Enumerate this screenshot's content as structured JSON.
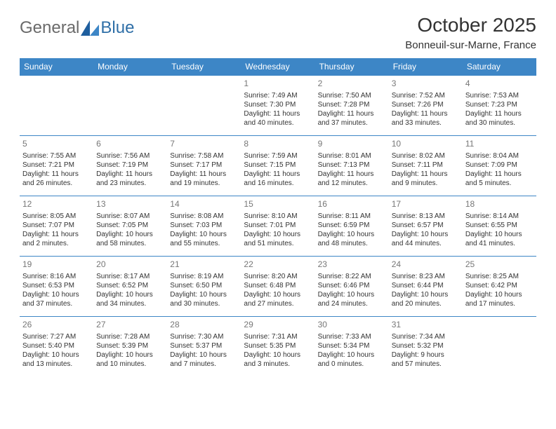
{
  "logo": {
    "text1": "General",
    "text2": "Blue"
  },
  "title": "October 2025",
  "location": "Bonneuil-sur-Marne, France",
  "colors": {
    "header_bg": "#3d86c6",
    "header_text": "#ffffff",
    "cell_border": "#3d86c6",
    "daynum_color": "#777777",
    "body_text": "#333333"
  },
  "day_headers": [
    "Sunday",
    "Monday",
    "Tuesday",
    "Wednesday",
    "Thursday",
    "Friday",
    "Saturday"
  ],
  "weeks": [
    [
      null,
      null,
      null,
      {
        "d": "1",
        "sr": "Sunrise: 7:49 AM",
        "ss": "Sunset: 7:30 PM",
        "dl1": "Daylight: 11 hours",
        "dl2": "and 40 minutes."
      },
      {
        "d": "2",
        "sr": "Sunrise: 7:50 AM",
        "ss": "Sunset: 7:28 PM",
        "dl1": "Daylight: 11 hours",
        "dl2": "and 37 minutes."
      },
      {
        "d": "3",
        "sr": "Sunrise: 7:52 AM",
        "ss": "Sunset: 7:26 PM",
        "dl1": "Daylight: 11 hours",
        "dl2": "and 33 minutes."
      },
      {
        "d": "4",
        "sr": "Sunrise: 7:53 AM",
        "ss": "Sunset: 7:23 PM",
        "dl1": "Daylight: 11 hours",
        "dl2": "and 30 minutes."
      }
    ],
    [
      {
        "d": "5",
        "sr": "Sunrise: 7:55 AM",
        "ss": "Sunset: 7:21 PM",
        "dl1": "Daylight: 11 hours",
        "dl2": "and 26 minutes."
      },
      {
        "d": "6",
        "sr": "Sunrise: 7:56 AM",
        "ss": "Sunset: 7:19 PM",
        "dl1": "Daylight: 11 hours",
        "dl2": "and 23 minutes."
      },
      {
        "d": "7",
        "sr": "Sunrise: 7:58 AM",
        "ss": "Sunset: 7:17 PM",
        "dl1": "Daylight: 11 hours",
        "dl2": "and 19 minutes."
      },
      {
        "d": "8",
        "sr": "Sunrise: 7:59 AM",
        "ss": "Sunset: 7:15 PM",
        "dl1": "Daylight: 11 hours",
        "dl2": "and 16 minutes."
      },
      {
        "d": "9",
        "sr": "Sunrise: 8:01 AM",
        "ss": "Sunset: 7:13 PM",
        "dl1": "Daylight: 11 hours",
        "dl2": "and 12 minutes."
      },
      {
        "d": "10",
        "sr": "Sunrise: 8:02 AM",
        "ss": "Sunset: 7:11 PM",
        "dl1": "Daylight: 11 hours",
        "dl2": "and 9 minutes."
      },
      {
        "d": "11",
        "sr": "Sunrise: 8:04 AM",
        "ss": "Sunset: 7:09 PM",
        "dl1": "Daylight: 11 hours",
        "dl2": "and 5 minutes."
      }
    ],
    [
      {
        "d": "12",
        "sr": "Sunrise: 8:05 AM",
        "ss": "Sunset: 7:07 PM",
        "dl1": "Daylight: 11 hours",
        "dl2": "and 2 minutes."
      },
      {
        "d": "13",
        "sr": "Sunrise: 8:07 AM",
        "ss": "Sunset: 7:05 PM",
        "dl1": "Daylight: 10 hours",
        "dl2": "and 58 minutes."
      },
      {
        "d": "14",
        "sr": "Sunrise: 8:08 AM",
        "ss": "Sunset: 7:03 PM",
        "dl1": "Daylight: 10 hours",
        "dl2": "and 55 minutes."
      },
      {
        "d": "15",
        "sr": "Sunrise: 8:10 AM",
        "ss": "Sunset: 7:01 PM",
        "dl1": "Daylight: 10 hours",
        "dl2": "and 51 minutes."
      },
      {
        "d": "16",
        "sr": "Sunrise: 8:11 AM",
        "ss": "Sunset: 6:59 PM",
        "dl1": "Daylight: 10 hours",
        "dl2": "and 48 minutes."
      },
      {
        "d": "17",
        "sr": "Sunrise: 8:13 AM",
        "ss": "Sunset: 6:57 PM",
        "dl1": "Daylight: 10 hours",
        "dl2": "and 44 minutes."
      },
      {
        "d": "18",
        "sr": "Sunrise: 8:14 AM",
        "ss": "Sunset: 6:55 PM",
        "dl1": "Daylight: 10 hours",
        "dl2": "and 41 minutes."
      }
    ],
    [
      {
        "d": "19",
        "sr": "Sunrise: 8:16 AM",
        "ss": "Sunset: 6:53 PM",
        "dl1": "Daylight: 10 hours",
        "dl2": "and 37 minutes."
      },
      {
        "d": "20",
        "sr": "Sunrise: 8:17 AM",
        "ss": "Sunset: 6:52 PM",
        "dl1": "Daylight: 10 hours",
        "dl2": "and 34 minutes."
      },
      {
        "d": "21",
        "sr": "Sunrise: 8:19 AM",
        "ss": "Sunset: 6:50 PM",
        "dl1": "Daylight: 10 hours",
        "dl2": "and 30 minutes."
      },
      {
        "d": "22",
        "sr": "Sunrise: 8:20 AM",
        "ss": "Sunset: 6:48 PM",
        "dl1": "Daylight: 10 hours",
        "dl2": "and 27 minutes."
      },
      {
        "d": "23",
        "sr": "Sunrise: 8:22 AM",
        "ss": "Sunset: 6:46 PM",
        "dl1": "Daylight: 10 hours",
        "dl2": "and 24 minutes."
      },
      {
        "d": "24",
        "sr": "Sunrise: 8:23 AM",
        "ss": "Sunset: 6:44 PM",
        "dl1": "Daylight: 10 hours",
        "dl2": "and 20 minutes."
      },
      {
        "d": "25",
        "sr": "Sunrise: 8:25 AM",
        "ss": "Sunset: 6:42 PM",
        "dl1": "Daylight: 10 hours",
        "dl2": "and 17 minutes."
      }
    ],
    [
      {
        "d": "26",
        "sr": "Sunrise: 7:27 AM",
        "ss": "Sunset: 5:40 PM",
        "dl1": "Daylight: 10 hours",
        "dl2": "and 13 minutes."
      },
      {
        "d": "27",
        "sr": "Sunrise: 7:28 AM",
        "ss": "Sunset: 5:39 PM",
        "dl1": "Daylight: 10 hours",
        "dl2": "and 10 minutes."
      },
      {
        "d": "28",
        "sr": "Sunrise: 7:30 AM",
        "ss": "Sunset: 5:37 PM",
        "dl1": "Daylight: 10 hours",
        "dl2": "and 7 minutes."
      },
      {
        "d": "29",
        "sr": "Sunrise: 7:31 AM",
        "ss": "Sunset: 5:35 PM",
        "dl1": "Daylight: 10 hours",
        "dl2": "and 3 minutes."
      },
      {
        "d": "30",
        "sr": "Sunrise: 7:33 AM",
        "ss": "Sunset: 5:34 PM",
        "dl1": "Daylight: 10 hours",
        "dl2": "and 0 minutes."
      },
      {
        "d": "31",
        "sr": "Sunrise: 7:34 AM",
        "ss": "Sunset: 5:32 PM",
        "dl1": "Daylight: 9 hours",
        "dl2": "and 57 minutes."
      },
      null
    ]
  ]
}
